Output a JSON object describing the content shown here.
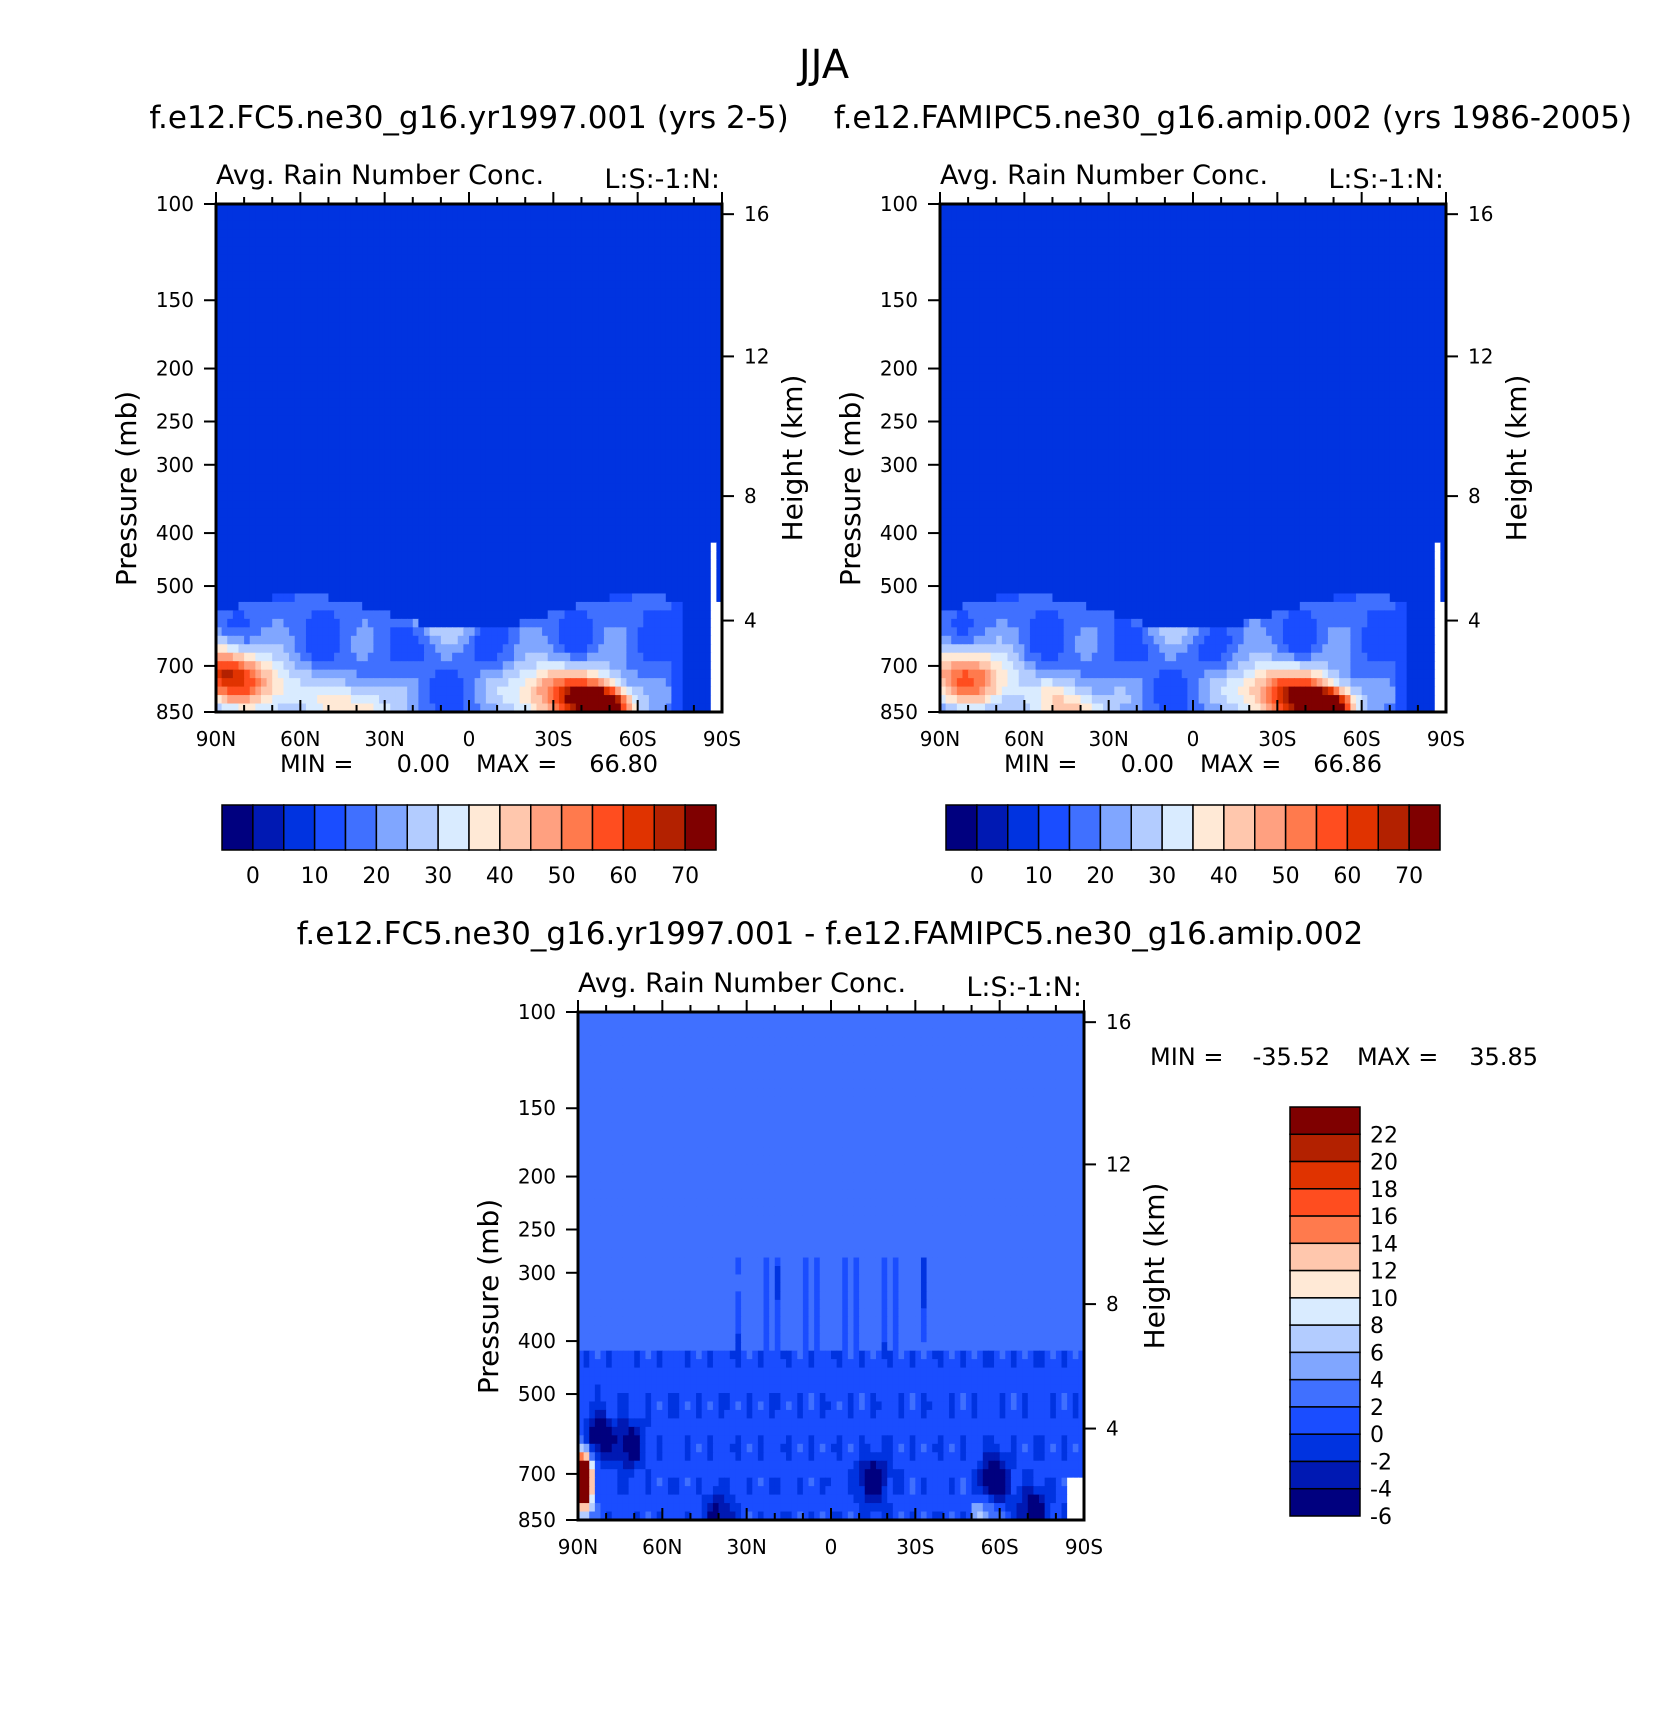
{
  "figure": {
    "title": "JJA"
  },
  "colors": {
    "absolute_palette": [
      "#00007f",
      "#0019b3",
      "#0033e0",
      "#1a4dff",
      "#4070ff",
      "#80a6ff",
      "#b3ccff",
      "#d9ebff",
      "#ffe9d6",
      "#ffc7ad",
      "#ffa080",
      "#ff7a4d",
      "#ff4d1f",
      "#e03300",
      "#b32100",
      "#7f0000"
    ],
    "difference_palette": [
      "#00007f",
      "#0019b3",
      "#0033e0",
      "#1a4dff",
      "#4070ff",
      "#80a6ff",
      "#b3ccff",
      "#d9ebff",
      "#ffe9d6",
      "#ffc7ad",
      "#ff7a4d",
      "#ff4d1f",
      "#e03300",
      "#b32100",
      "#7f0000"
    ]
  },
  "chart_data": [
    {
      "type": "heatmap",
      "title": "f.e12.FC5.ne30_g16.yr1997.001 (yrs 2-5)",
      "variable": "Avg. Rain Number Conc.",
      "corner_label": "L:S:-1:N:",
      "xlabel": "",
      "ylabel": "Pressure (mb)",
      "ylabel_right": "Height (km)",
      "x_ticks": [
        "90N",
        "60N",
        "30N",
        "0",
        "30S",
        "60S",
        "90S"
      ],
      "y_ticks": [
        "100",
        "150",
        "200",
        "250",
        "300",
        "400",
        "500",
        "700",
        "850"
      ],
      "y_ticks_right": [
        "16",
        "12",
        "8",
        "4"
      ],
      "y_log_scale": true,
      "ylim": [
        850,
        100
      ],
      "stats": {
        "min_label": "MIN =",
        "min_value": "0.00",
        "max_label": "MAX =",
        "max_value": "66.80"
      },
      "colorbar": {
        "orientation": "horizontal",
        "labels": [
          "0",
          "10",
          "20",
          "30",
          "40",
          "50",
          "60",
          "70"
        ]
      },
      "features": [
        {
          "lat": -48,
          "p": 830,
          "value": 66.8
        },
        {
          "lat": -42,
          "p": 800,
          "value": 40
        },
        {
          "lat": -25,
          "p": 780,
          "value": 30
        },
        {
          "lat": 88,
          "p": 720,
          "value": 50
        },
        {
          "lat": 70,
          "p": 780,
          "value": 25
        },
        {
          "lat": 40,
          "p": 840,
          "value": 28
        },
        {
          "lat": 8,
          "p": 540,
          "value": 22
        }
      ]
    },
    {
      "type": "heatmap",
      "title": "f.e12.FAMIPC5.ne30_g16.amip.002 (yrs 1986-2005)",
      "variable": "Avg. Rain Number Conc.",
      "corner_label": "L:S:-1:N:",
      "xlabel": "",
      "ylabel": "Pressure (mb)",
      "ylabel_right": "Height (km)",
      "x_ticks": [
        "90N",
        "60N",
        "30N",
        "0",
        "30S",
        "60S",
        "90S"
      ],
      "y_ticks": [
        "100",
        "150",
        "200",
        "250",
        "300",
        "400",
        "500",
        "700",
        "850"
      ],
      "y_ticks_right": [
        "16",
        "12",
        "8",
        "4"
      ],
      "y_log_scale": true,
      "ylim": [
        850,
        100
      ],
      "stats": {
        "min_label": "MIN =",
        "min_value": "0.00",
        "max_label": "MAX =",
        "max_value": "66.86"
      },
      "colorbar": {
        "orientation": "horizontal",
        "labels": [
          "0",
          "10",
          "20",
          "30",
          "40",
          "50",
          "60",
          "70"
        ]
      },
      "features": [
        {
          "lat": -48,
          "p": 830,
          "value": 66.86
        },
        {
          "lat": -40,
          "p": 800,
          "value": 40
        },
        {
          "lat": -25,
          "p": 780,
          "value": 30
        },
        {
          "lat": 85,
          "p": 720,
          "value": 30
        },
        {
          "lat": 72,
          "p": 760,
          "value": 25
        },
        {
          "lat": 42,
          "p": 840,
          "value": 30
        },
        {
          "lat": 5,
          "p": 540,
          "value": 22
        }
      ]
    },
    {
      "type": "heatmap",
      "title": "f.e12.FC5.ne30_g16.yr1997.001 - f.e12.FAMIPC5.ne30_g16.amip.002",
      "variable": "Avg. Rain Number Conc.",
      "corner_label": "L:S:-1:N:",
      "xlabel": "",
      "ylabel": "Pressure (mb)",
      "ylabel_right": "Height (km)",
      "x_ticks": [
        "90N",
        "60N",
        "30N",
        "0",
        "30S",
        "60S",
        "90S"
      ],
      "y_ticks": [
        "100",
        "150",
        "200",
        "250",
        "300",
        "400",
        "500",
        "700",
        "850"
      ],
      "y_ticks_right": [
        "16",
        "12",
        "8",
        "4"
      ],
      "y_log_scale": true,
      "ylim": [
        850,
        100
      ],
      "stats": {
        "min_label": "MIN =",
        "min_value": "-35.52",
        "max_label": "MAX =",
        "max_value": "35.85"
      },
      "colorbar": {
        "orientation": "vertical",
        "labels": [
          "22",
          "20",
          "18",
          "16",
          "14",
          "12",
          "10",
          "8",
          "6",
          "4",
          "2",
          "0",
          "-2",
          "-4",
          "-6"
        ]
      },
      "features": [
        {
          "lat": 88,
          "p": 720,
          "value": 35.85
        },
        {
          "lat": 83,
          "p": 600,
          "value": -8
        },
        {
          "lat": 72,
          "p": 620,
          "value": -7
        },
        {
          "lat": -15,
          "p": 720,
          "value": -8
        },
        {
          "lat": -58,
          "p": 720,
          "value": -10
        },
        {
          "lat": -72,
          "p": 820,
          "value": -8
        },
        {
          "lat": 40,
          "p": 840,
          "value": -6
        },
        {
          "lat": -55,
          "p": 830,
          "value": 6
        }
      ]
    }
  ]
}
